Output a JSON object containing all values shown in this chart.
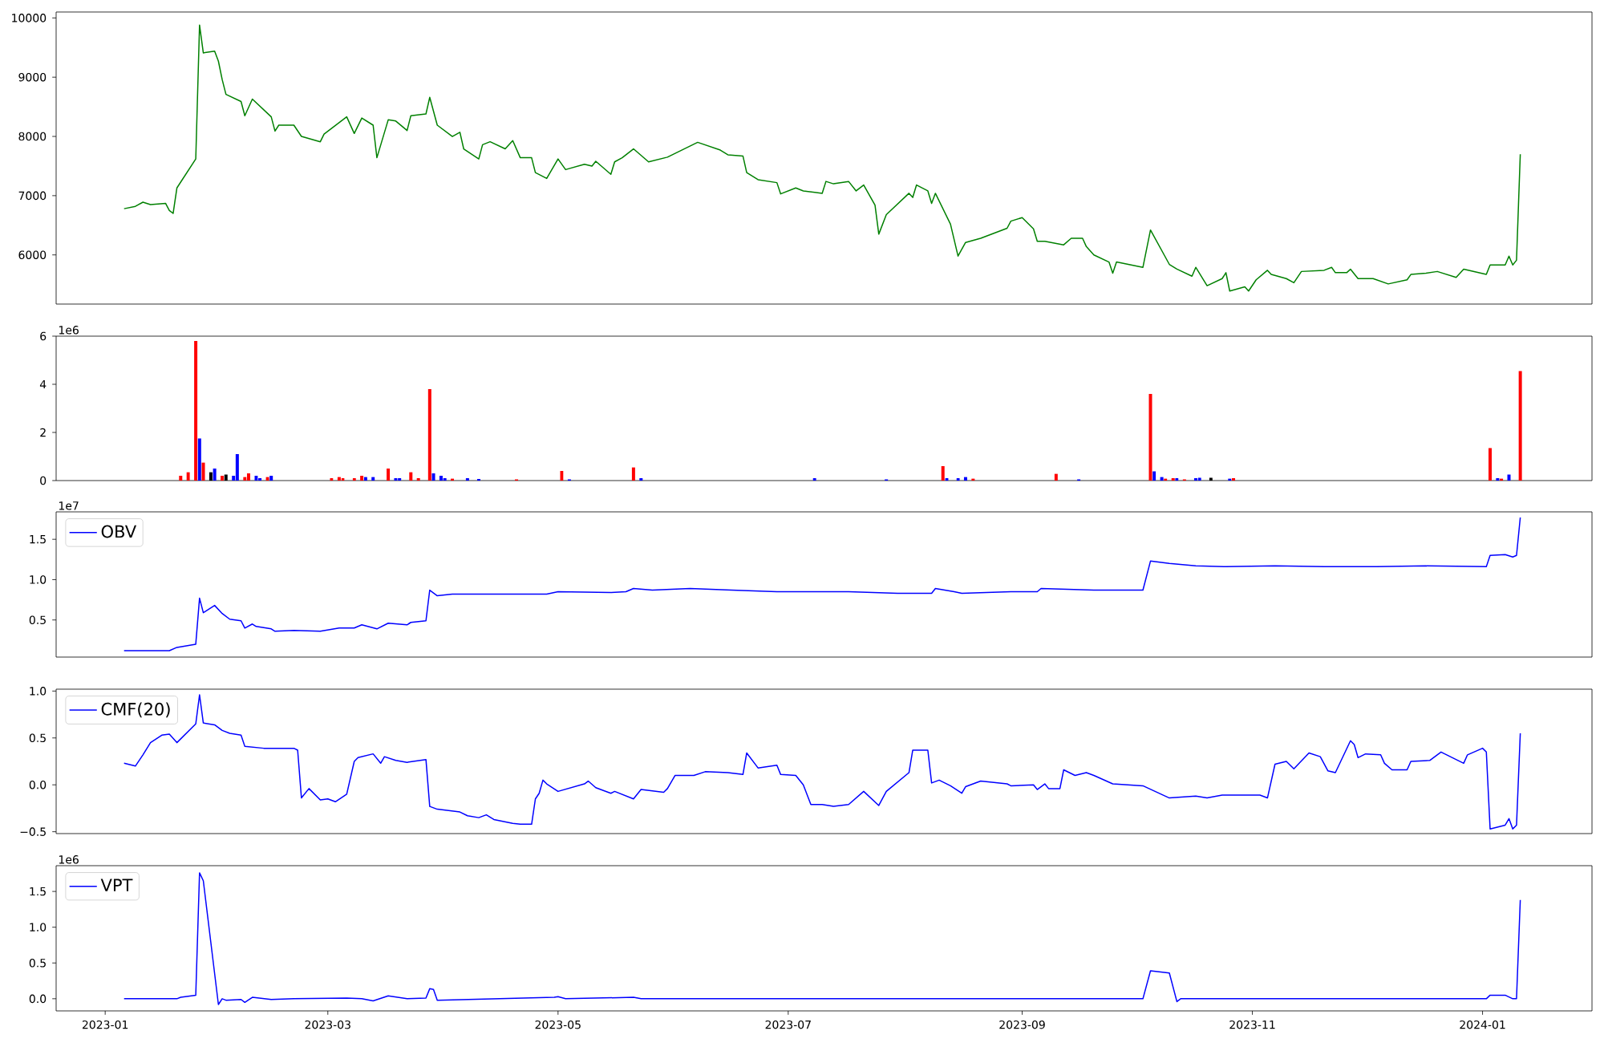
{
  "chart_data": [
    {
      "type": "line",
      "color": "#008000",
      "xlim": [
        "2022-12-19",
        "2024-01-30"
      ],
      "ylim": [
        5170,
        10100
      ],
      "yticks": [
        6000,
        7000,
        8000,
        9000,
        10000
      ],
      "tick_labels": "y",
      "x": [
        "2023-01-06",
        "2023-01-09",
        "2023-01-11",
        "2023-01-13",
        "2023-01-17",
        "2023-01-18",
        "2023-01-19",
        "2023-01-20",
        "2023-01-25",
        "2023-01-26",
        "2023-01-27",
        "2023-01-30",
        "2023-01-31",
        "2023-02-01",
        "2023-02-02",
        "2023-02-06",
        "2023-02-07",
        "2023-02-09",
        "2023-02-14",
        "2023-02-15",
        "2023-02-16",
        "2023-02-20",
        "2023-02-22",
        "2023-02-27",
        "2023-02-28",
        "2023-03-06",
        "2023-03-08",
        "2023-03-10",
        "2023-03-13",
        "2023-03-14",
        "2023-03-17",
        "2023-03-19",
        "2023-03-22",
        "2023-03-23",
        "2023-03-27",
        "2023-03-28",
        "2023-03-30",
        "2023-04-03",
        "2023-04-05",
        "2023-04-06",
        "2023-04-10",
        "2023-04-11",
        "2023-04-13",
        "2023-04-17",
        "2023-04-19",
        "2023-04-21",
        "2023-04-24",
        "2023-04-25",
        "2023-04-28",
        "2023-05-01",
        "2023-05-03",
        "2023-05-08",
        "2023-05-10",
        "2023-05-11",
        "2023-05-15",
        "2023-05-16",
        "2023-05-18",
        "2023-05-21",
        "2023-05-25",
        "2023-05-30",
        "2023-06-07",
        "2023-06-13",
        "2023-06-15",
        "2023-06-19",
        "2023-06-20",
        "2023-06-23",
        "2023-06-28",
        "2023-06-29",
        "2023-07-03",
        "2023-07-05",
        "2023-07-10",
        "2023-07-11",
        "2023-07-13",
        "2023-07-17",
        "2023-07-19",
        "2023-07-21",
        "2023-07-24",
        "2023-07-25",
        "2023-07-27",
        "2023-08-02",
        "2023-08-03",
        "2023-08-04",
        "2023-08-07",
        "2023-08-08",
        "2023-08-09",
        "2023-08-13",
        "2023-08-15",
        "2023-08-17",
        "2023-08-21",
        "2023-08-28",
        "2023-08-29",
        "2023-09-01",
        "2023-09-04",
        "2023-09-05",
        "2023-09-07",
        "2023-09-12",
        "2023-09-14",
        "2023-09-17",
        "2023-09-18",
        "2023-09-20",
        "2023-09-24",
        "2023-09-25",
        "2023-09-26",
        "2023-10-03",
        "2023-10-05",
        "2023-10-10",
        "2023-10-12",
        "2023-10-16",
        "2023-10-17",
        "2023-10-20",
        "2023-10-24",
        "2023-10-25",
        "2023-10-26",
        "2023-10-30",
        "2023-10-31",
        "2023-11-02",
        "2023-11-05",
        "2023-11-06",
        "2023-11-10",
        "2023-11-12",
        "2023-11-14",
        "2023-11-20",
        "2023-11-22",
        "2023-11-23",
        "2023-11-26",
        "2023-11-27",
        "2023-11-29",
        "2023-12-03",
        "2023-12-07",
        "2023-12-12",
        "2023-12-13",
        "2023-12-17",
        "2023-12-20",
        "2023-12-25",
        "2023-12-27",
        "2024-01-02",
        "2024-01-03",
        "2024-01-07",
        "2024-01-08",
        "2024-01-09",
        "2024-01-10",
        "2024-01-11"
      ],
      "values": [
        6780,
        6820,
        6890,
        6850,
        6870,
        6750,
        6700,
        7130,
        7620,
        9880,
        9410,
        9440,
        9270,
        8960,
        8710,
        8590,
        8350,
        8630,
        8330,
        8090,
        8190,
        8190,
        8000,
        7910,
        8040,
        8330,
        8050,
        8310,
        8190,
        7640,
        8280,
        8260,
        8100,
        8350,
        8380,
        8660,
        8190,
        8000,
        8070,
        7790,
        7620,
        7860,
        7910,
        7790,
        7930,
        7640,
        7640,
        7390,
        7290,
        7620,
        7440,
        7530,
        7500,
        7580,
        7360,
        7570,
        7640,
        7790,
        7570,
        7650,
        7900,
        7770,
        7690,
        7670,
        7390,
        7270,
        7220,
        7030,
        7130,
        7080,
        7040,
        7240,
        7200,
        7240,
        7080,
        7180,
        6840,
        6350,
        6680,
        7040,
        6970,
        7180,
        7080,
        6870,
        7040,
        6520,
        5980,
        6210,
        6280,
        6450,
        6570,
        6630,
        6440,
        6230,
        6230,
        6170,
        6280,
        6280,
        6140,
        6000,
        5880,
        5690,
        5880,
        5790,
        6420,
        5840,
        5760,
        5640,
        5790,
        5480,
        5600,
        5700,
        5390,
        5460,
        5390,
        5580,
        5740,
        5670,
        5600,
        5530,
        5720,
        5740,
        5790,
        5700,
        5700,
        5760,
        5600,
        5600,
        5510,
        5580,
        5670,
        5690,
        5720,
        5620,
        5760,
        5670,
        5830,
        5830,
        5980,
        5830,
        5910,
        7700
      ]
    },
    {
      "type": "bar",
      "xlim": [
        "2022-12-19",
        "2024-01-30"
      ],
      "ylim": [
        0,
        6
      ],
      "yticks": [
        0,
        2,
        4,
        6
      ],
      "tick_labels": "y",
      "annotations": [
        "1e6"
      ],
      "x": [
        "2023-01-21",
        "2023-01-23",
        "2023-01-25",
        "2023-01-26",
        "2023-01-27",
        "2023-01-29",
        "2023-01-30",
        "2023-02-01",
        "2023-02-02",
        "2023-02-04",
        "2023-02-05",
        "2023-02-07",
        "2023-02-08",
        "2023-02-10",
        "2023-02-11",
        "2023-02-13",
        "2023-02-14",
        "2023-03-02",
        "2023-03-04",
        "2023-03-05",
        "2023-03-08",
        "2023-03-10",
        "2023-03-11",
        "2023-03-13",
        "2023-03-17",
        "2023-03-19",
        "2023-03-20",
        "2023-03-23",
        "2023-03-25",
        "2023-03-28",
        "2023-03-29",
        "2023-03-31",
        "2023-04-01",
        "2023-04-03",
        "2023-04-07",
        "2023-04-10",
        "2023-04-20",
        "2023-05-02",
        "2023-05-04",
        "2023-05-21",
        "2023-05-23",
        "2023-07-08",
        "2023-07-27",
        "2023-08-11",
        "2023-08-12",
        "2023-08-15",
        "2023-08-17",
        "2023-08-19",
        "2023-09-10",
        "2023-09-16",
        "2023-10-05",
        "2023-10-06",
        "2023-10-08",
        "2023-10-09",
        "2023-10-11",
        "2023-10-12",
        "2023-10-14",
        "2023-10-17",
        "2023-10-18",
        "2023-10-21",
        "2023-10-26",
        "2023-10-27",
        "2024-01-03",
        "2024-01-05",
        "2024-01-06",
        "2024-01-08",
        "2024-01-11"
      ],
      "values": [
        0.2,
        0.35,
        5.8,
        1.75,
        0.75,
        0.35,
        0.5,
        0.2,
        0.25,
        0.2,
        1.1,
        0.15,
        0.3,
        0.2,
        0.1,
        0.15,
        0.2,
        0.1,
        0.15,
        0.1,
        0.1,
        0.2,
        0.15,
        0.15,
        0.5,
        0.1,
        0.1,
        0.35,
        0.1,
        3.8,
        0.3,
        0.2,
        0.1,
        0.08,
        0.1,
        0.07,
        0.05,
        0.4,
        0.05,
        0.55,
        0.1,
        0.1,
        0.05,
        0.6,
        0.1,
        0.1,
        0.15,
        0.08,
        0.28,
        0.05,
        3.6,
        0.38,
        0.15,
        0.08,
        0.1,
        0.1,
        0.05,
        0.1,
        0.12,
        0.12,
        0.08,
        0.1,
        1.35,
        0.1,
        0.08,
        0.25,
        4.55
      ],
      "colors": [
        "#ff0000",
        "#ff0000",
        "#ff0000",
        "#0000ff",
        "#ff0000",
        "#000000",
        "#0000ff",
        "#ff0000",
        "#000000",
        "#0000ff",
        "#0000ff",
        "#ff0000",
        "#ff0000",
        "#0000ff",
        "#0000ff",
        "#ff0000",
        "#0000ff",
        "#ff0000",
        "#ff0000",
        "#ff0000",
        "#ff0000",
        "#ff0000",
        "#0000ff",
        "#0000ff",
        "#ff0000",
        "#0000ff",
        "#0000ff",
        "#ff0000",
        "#ff0000",
        "#ff0000",
        "#0000ff",
        "#0000ff",
        "#0000ff",
        "#ff0000",
        "#0000ff",
        "#0000ff",
        "#ff0000",
        "#ff0000",
        "#0000ff",
        "#ff0000",
        "#0000ff",
        "#0000ff",
        "#0000ff",
        "#ff0000",
        "#0000ff",
        "#0000ff",
        "#0000ff",
        "#ff0000",
        "#ff0000",
        "#0000ff",
        "#ff0000",
        "#0000ff",
        "#0000ff",
        "#ff0000",
        "#ff0000",
        "#0000ff",
        "#ff0000",
        "#0000ff",
        "#0000ff",
        "#000000",
        "#0000ff",
        "#ff0000",
        "#ff0000",
        "#0000ff",
        "#ff0000",
        "#0000ff",
        "#ff0000"
      ]
    },
    {
      "type": "line",
      "xlim": [
        "2022-12-19",
        "2024-01-30"
      ],
      "ylim": [
        0.04,
        1.84
      ],
      "yticks": [
        {
          "value": 0.5,
          "label": "0.5"
        },
        {
          "value": 1.0,
          "label": "1.0"
        },
        {
          "value": 1.5,
          "label": "1.5"
        }
      ],
      "tick_labels": "y",
      "legend": "top left",
      "annotations": [
        "1e7"
      ],
      "x": [
        "2023-01-06",
        "2023-01-11",
        "2023-01-18",
        "2023-01-20",
        "2023-01-25",
        "2023-01-26",
        "2023-01-27",
        "2023-01-30",
        "2023-02-01",
        "2023-02-03",
        "2023-02-06",
        "2023-02-07",
        "2023-02-09",
        "2023-02-10",
        "2023-02-14",
        "2023-02-15",
        "2023-02-20",
        "2023-02-27",
        "2023-03-04",
        "2023-03-08",
        "2023-03-10",
        "2023-03-14",
        "2023-03-17",
        "2023-03-22",
        "2023-03-23",
        "2023-03-27",
        "2023-03-28",
        "2023-03-30",
        "2023-04-03",
        "2023-04-17",
        "2023-04-28",
        "2023-05-01",
        "2023-05-15",
        "2023-05-19",
        "2023-05-21",
        "2023-05-26",
        "2023-06-05",
        "2023-06-16",
        "2023-06-28",
        "2023-07-17",
        "2023-07-30",
        "2023-08-08",
        "2023-08-09",
        "2023-08-14",
        "2023-08-16",
        "2023-08-29",
        "2023-09-05",
        "2023-09-06",
        "2023-09-20",
        "2023-10-03",
        "2023-10-05",
        "2023-10-10",
        "2023-10-17",
        "2023-10-25",
        "2023-11-07",
        "2023-11-20",
        "2023-12-04",
        "2023-12-17",
        "2024-01-02",
        "2024-01-03",
        "2024-01-07",
        "2024-01-09",
        "2024-01-10",
        "2024-01-11"
      ],
      "series": [
        {
          "name": "OBV",
          "color": "#0000ff",
          "values": [
            0.12,
            0.12,
            0.12,
            0.16,
            0.2,
            0.77,
            0.59,
            0.68,
            0.58,
            0.51,
            0.49,
            0.4,
            0.45,
            0.42,
            0.39,
            0.36,
            0.37,
            0.36,
            0.4,
            0.4,
            0.44,
            0.39,
            0.46,
            0.44,
            0.47,
            0.49,
            0.87,
            0.8,
            0.82,
            0.82,
            0.82,
            0.85,
            0.84,
            0.85,
            0.89,
            0.87,
            0.89,
            0.87,
            0.85,
            0.85,
            0.83,
            0.83,
            0.89,
            0.85,
            0.83,
            0.85,
            0.85,
            0.89,
            0.87,
            0.87,
            1.23,
            1.2,
            1.17,
            1.16,
            1.17,
            1.16,
            1.16,
            1.17,
            1.16,
            1.3,
            1.31,
            1.28,
            1.3,
            1.77
          ]
        }
      ]
    },
    {
      "type": "line",
      "xlim": [
        "2022-12-19",
        "2024-01-30"
      ],
      "ylim": [
        -0.52,
        1.02
      ],
      "yticks": [
        {
          "value": -0.5,
          "label": "−0.5"
        },
        {
          "value": 0.0,
          "label": "0.0"
        },
        {
          "value": 0.5,
          "label": "0.5"
        },
        {
          "value": 1.0,
          "label": "1.0"
        }
      ],
      "tick_labels": "y",
      "legend": "top left",
      "x": [
        "2023-01-06",
        "2023-01-09",
        "2023-01-11",
        "2023-01-13",
        "2023-01-16",
        "2023-01-18",
        "2023-01-20",
        "2023-01-25",
        "2023-01-26",
        "2023-01-27",
        "2023-01-30",
        "2023-02-01",
        "2023-02-03",
        "2023-02-06",
        "2023-02-07",
        "2023-02-12",
        "2023-02-20",
        "2023-02-21",
        "2023-02-22",
        "2023-02-24",
        "2023-02-27",
        "2023-03-01",
        "2023-03-03",
        "2023-03-06",
        "2023-03-08",
        "2023-03-09",
        "2023-03-13",
        "2023-03-15",
        "2023-03-16",
        "2023-03-19",
        "2023-03-22",
        "2023-03-27",
        "2023-03-28",
        "2023-03-30",
        "2023-04-05",
        "2023-04-07",
        "2023-04-10",
        "2023-04-12",
        "2023-04-14",
        "2023-04-19",
        "2023-04-21",
        "2023-04-24",
        "2023-04-25",
        "2023-04-26",
        "2023-04-27",
        "2023-04-28",
        "2023-05-01",
        "2023-05-08",
        "2023-05-09",
        "2023-05-11",
        "2023-05-15",
        "2023-05-16",
        "2023-05-21",
        "2023-05-23",
        "2023-05-29",
        "2023-05-30",
        "2023-06-01",
        "2023-06-06",
        "2023-06-09",
        "2023-06-15",
        "2023-06-19",
        "2023-06-20",
        "2023-06-23",
        "2023-06-28",
        "2023-06-29",
        "2023-07-03",
        "2023-07-05",
        "2023-07-07",
        "2023-07-10",
        "2023-07-13",
        "2023-07-17",
        "2023-07-21",
        "2023-07-25",
        "2023-07-27",
        "2023-08-02",
        "2023-08-03",
        "2023-08-07",
        "2023-08-08",
        "2023-08-10",
        "2023-08-13",
        "2023-08-16",
        "2023-08-17",
        "2023-08-21",
        "2023-08-28",
        "2023-08-29",
        "2023-09-04",
        "2023-09-05",
        "2023-09-07",
        "2023-09-08",
        "2023-09-11",
        "2023-09-12",
        "2023-09-15",
        "2023-09-18",
        "2023-09-20",
        "2023-09-25",
        "2023-10-03",
        "2023-10-10",
        "2023-10-17",
        "2023-10-20",
        "2023-10-24",
        "2023-11-03",
        "2023-11-05",
        "2023-11-06",
        "2023-11-07",
        "2023-11-10",
        "2023-11-12",
        "2023-11-16",
        "2023-11-19",
        "2023-11-21",
        "2023-11-23",
        "2023-11-27",
        "2023-11-28",
        "2023-11-29",
        "2023-12-01",
        "2023-12-05",
        "2023-12-06",
        "2023-12-08",
        "2023-12-12",
        "2023-12-13",
        "2023-12-18",
        "2023-12-21",
        "2023-12-27",
        "2023-12-28",
        "2024-01-01",
        "2024-01-02",
        "2024-01-03",
        "2024-01-07",
        "2024-01-08",
        "2024-01-09",
        "2024-01-10",
        "2024-01-11"
      ],
      "series": [
        {
          "name": "CMF(20)",
          "color": "#0000ff",
          "values": [
            0.23,
            0.2,
            0.32,
            0.45,
            0.53,
            0.54,
            0.45,
            0.65,
            0.96,
            0.66,
            0.64,
            0.58,
            0.55,
            0.53,
            0.41,
            0.39,
            0.39,
            0.37,
            -0.14,
            -0.04,
            -0.16,
            -0.15,
            -0.18,
            -0.1,
            0.25,
            0.29,
            0.33,
            0.23,
            0.3,
            0.26,
            0.24,
            0.27,
            -0.23,
            -0.26,
            -0.29,
            -0.33,
            -0.35,
            -0.32,
            -0.37,
            -0.41,
            -0.42,
            -0.42,
            -0.15,
            -0.09,
            0.05,
            0.01,
            -0.07,
            0.01,
            0.04,
            -0.03,
            -0.09,
            -0.07,
            -0.15,
            -0.05,
            -0.08,
            -0.04,
            0.1,
            0.1,
            0.14,
            0.13,
            0.11,
            0.34,
            0.18,
            0.21,
            0.11,
            0.1,
            0.0,
            -0.21,
            -0.21,
            -0.23,
            -0.21,
            -0.07,
            -0.22,
            -0.07,
            0.13,
            0.37,
            0.37,
            0.02,
            0.05,
            -0.01,
            -0.09,
            -0.02,
            0.04,
            0.01,
            -0.01,
            0.0,
            -0.05,
            0.01,
            -0.04,
            -0.04,
            0.16,
            0.1,
            0.13,
            0.1,
            0.01,
            -0.01,
            -0.14,
            -0.12,
            -0.14,
            -0.11,
            -0.11,
            -0.14,
            0.04,
            0.22,
            0.25,
            0.17,
            0.34,
            0.3,
            0.15,
            0.13,
            0.47,
            0.43,
            0.29,
            0.33,
            0.32,
            0.23,
            0.16,
            0.16,
            0.25,
            0.26,
            0.35,
            0.23,
            0.32,
            0.39,
            0.35,
            -0.47,
            -0.43,
            -0.36,
            -0.47,
            -0.43,
            0.55
          ]
        }
      ]
    },
    {
      "type": "line",
      "xlim": [
        "2022-12-19",
        "2024-01-30"
      ],
      "ylim": [
        -0.17,
        1.86
      ],
      "xticks": [
        {
          "value": "2023-01-01",
          "label": "2023-01"
        },
        {
          "value": "2023-03-01",
          "label": "2023-03"
        },
        {
          "value": "2023-05-01",
          "label": "2023-05"
        },
        {
          "value": "2023-07-01",
          "label": "2023-07"
        },
        {
          "value": "2023-09-01",
          "label": "2023-09"
        },
        {
          "value": "2023-11-01",
          "label": "2023-11"
        },
        {
          "value": "2024-01-01",
          "label": "2024-01"
        }
      ],
      "yticks": [
        {
          "value": 0.0,
          "label": "0.0"
        },
        {
          "value": 0.5,
          "label": "0.5"
        },
        {
          "value": 1.0,
          "label": "1.0"
        },
        {
          "value": 1.5,
          "label": "1.5"
        }
      ],
      "legend": "top left",
      "annotations": [
        "1e6"
      ],
      "x": [
        "2023-01-06",
        "2023-01-20",
        "2023-01-21",
        "2023-01-25",
        "2023-01-26",
        "2023-01-27",
        "2023-01-31",
        "2023-02-01",
        "2023-02-02",
        "2023-02-06",
        "2023-02-07",
        "2023-02-09",
        "2023-02-14",
        "2023-02-20",
        "2023-03-06",
        "2023-03-10",
        "2023-03-13",
        "2023-03-17",
        "2023-03-22",
        "2023-03-27",
        "2023-03-28",
        "2023-03-29",
        "2023-03-30",
        "2023-04-30",
        "2023-05-01",
        "2023-05-03",
        "2023-05-21",
        "2023-05-23",
        "2023-10-03",
        "2023-10-05",
        "2023-10-10",
        "2023-10-12",
        "2023-10-13",
        "2024-01-02",
        "2024-01-03",
        "2024-01-07",
        "2024-01-09",
        "2024-01-10",
        "2024-01-11"
      ],
      "series": [
        {
          "name": "VPT",
          "color": "#0000ff",
          "values": [
            0.0,
            0.0,
            0.02,
            0.05,
            1.76,
            1.65,
            -0.08,
            0.0,
            -0.02,
            -0.01,
            -0.05,
            0.02,
            -0.01,
            0.0,
            0.01,
            0.0,
            -0.03,
            0.04,
            0.0,
            0.01,
            0.14,
            0.13,
            -0.02,
            0.02,
            0.03,
            0.0,
            0.02,
            0.0,
            0.0,
            0.39,
            0.36,
            -0.04,
            0.0,
            0.0,
            0.05,
            0.05,
            0.0,
            0.0,
            1.38
          ]
        }
      ]
    }
  ]
}
